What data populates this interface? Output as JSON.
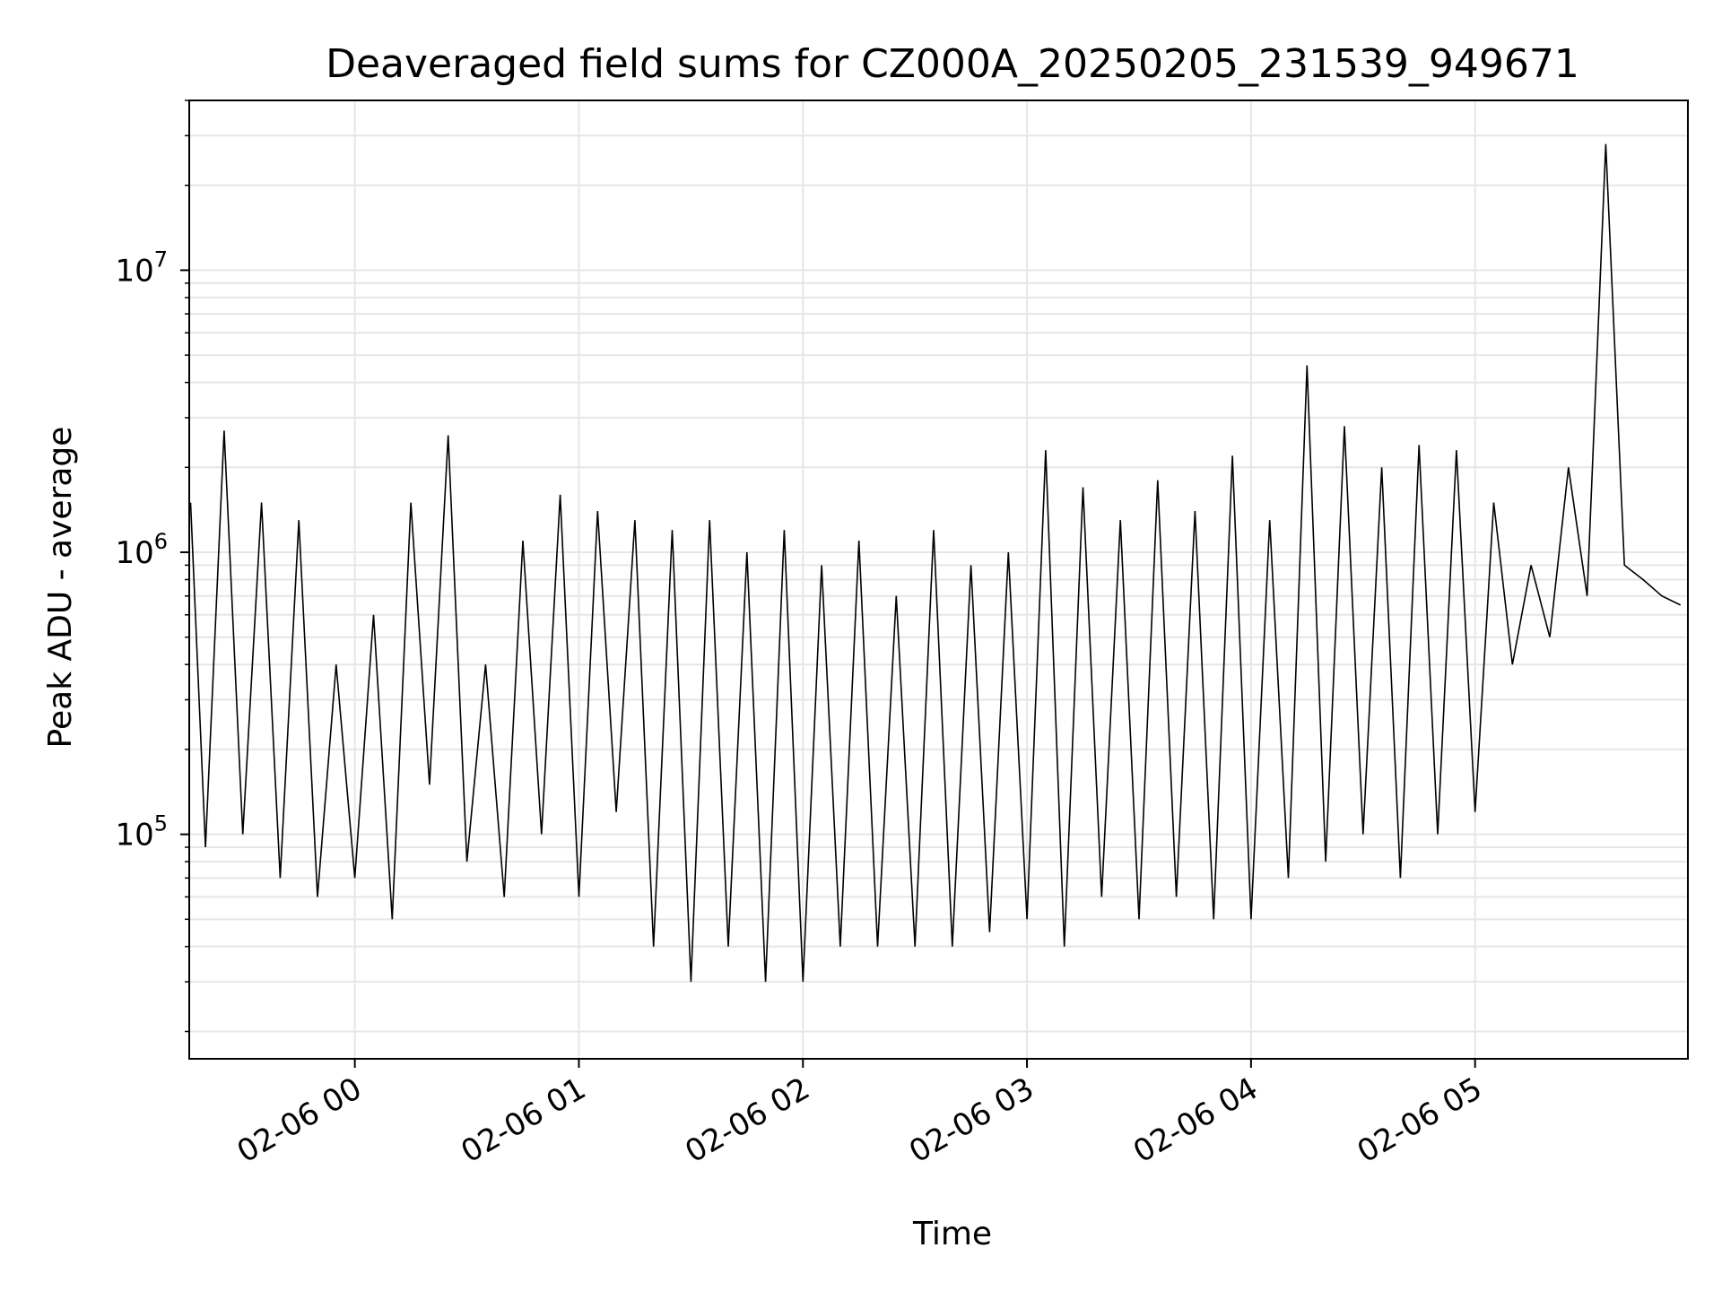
{
  "chart_data": {
    "type": "line",
    "title": "Deaveraged field sums for CZ000A_20250205_231539_949671",
    "xlabel": "Time",
    "ylabel": "Peak ADU - average",
    "yscale": "log",
    "ylim": [
      16000,
      40000000
    ],
    "xlim": [
      "2025-02-05 23:15:39",
      "2025-02-06 05:57:00"
    ],
    "grid": true,
    "legend": "none",
    "line_color": "#000000",
    "grid_color": "#e6e6e6",
    "x_ticks": [
      {
        "t": "2025-02-06 00:00",
        "label": "02-06 00"
      },
      {
        "t": "2025-02-06 01:00",
        "label": "02-06 01"
      },
      {
        "t": "2025-02-06 02:00",
        "label": "02-06 02"
      },
      {
        "t": "2025-02-06 03:00",
        "label": "02-06 03"
      },
      {
        "t": "2025-02-06 04:00",
        "label": "02-06 04"
      },
      {
        "t": "2025-02-06 05:00",
        "label": "02-06 05"
      }
    ],
    "y_ticks": [
      {
        "value": 100000,
        "base": "10",
        "exp": "5"
      },
      {
        "value": 1000000,
        "base": "10",
        "exp": "6"
      },
      {
        "value": 10000000,
        "base": "10",
        "exp": "7"
      }
    ],
    "series": [
      {
        "x": [
          "2025-02-05 23:16",
          "2025-02-05 23:20",
          "2025-02-05 23:25",
          "2025-02-05 23:30",
          "2025-02-05 23:35",
          "2025-02-05 23:40",
          "2025-02-05 23:45",
          "2025-02-05 23:50",
          "2025-02-05 23:55",
          "2025-02-06 00:00",
          "2025-02-06 00:05",
          "2025-02-06 00:10",
          "2025-02-06 00:15",
          "2025-02-06 00:20",
          "2025-02-06 00:25",
          "2025-02-06 00:30",
          "2025-02-06 00:35",
          "2025-02-06 00:40",
          "2025-02-06 00:45",
          "2025-02-06 00:50",
          "2025-02-06 00:55",
          "2025-02-06 01:00",
          "2025-02-06 01:05",
          "2025-02-06 01:10",
          "2025-02-06 01:15",
          "2025-02-06 01:20",
          "2025-02-06 01:25",
          "2025-02-06 01:30",
          "2025-02-06 01:35",
          "2025-02-06 01:40",
          "2025-02-06 01:45",
          "2025-02-06 01:50",
          "2025-02-06 01:55",
          "2025-02-06 02:00",
          "2025-02-06 02:05",
          "2025-02-06 02:10",
          "2025-02-06 02:15",
          "2025-02-06 02:20",
          "2025-02-06 02:25",
          "2025-02-06 02:30",
          "2025-02-06 02:35",
          "2025-02-06 02:40",
          "2025-02-06 02:45",
          "2025-02-06 02:50",
          "2025-02-06 02:55",
          "2025-02-06 03:00",
          "2025-02-06 03:05",
          "2025-02-06 03:10",
          "2025-02-06 03:15",
          "2025-02-06 03:20",
          "2025-02-06 03:25",
          "2025-02-06 03:30",
          "2025-02-06 03:35",
          "2025-02-06 03:40",
          "2025-02-06 03:45",
          "2025-02-06 03:50",
          "2025-02-06 03:55",
          "2025-02-06 04:00",
          "2025-02-06 04:05",
          "2025-02-06 04:10",
          "2025-02-06 04:15",
          "2025-02-06 04:20",
          "2025-02-06 04:25",
          "2025-02-06 04:30",
          "2025-02-06 04:35",
          "2025-02-06 04:40",
          "2025-02-06 04:45",
          "2025-02-06 04:50",
          "2025-02-06 04:55",
          "2025-02-06 05:00",
          "2025-02-06 05:05",
          "2025-02-06 05:10",
          "2025-02-06 05:15",
          "2025-02-06 05:20",
          "2025-02-06 05:25",
          "2025-02-06 05:30",
          "2025-02-06 05:35",
          "2025-02-06 05:40",
          "2025-02-06 05:45",
          "2025-02-06 05:50",
          "2025-02-06 05:55"
        ],
        "values": [
          1500000,
          90000,
          2700000,
          100000,
          1500000,
          70000,
          1300000,
          60000,
          400000,
          70000,
          600000,
          50000,
          1500000,
          150000,
          2600000,
          80000,
          400000,
          60000,
          1100000,
          100000,
          1600000,
          60000,
          1400000,
          120000,
          1300000,
          40000,
          1200000,
          30000,
          1300000,
          40000,
          1000000,
          30000,
          1200000,
          30000,
          900000,
          40000,
          1100000,
          40000,
          700000,
          40000,
          1200000,
          40000,
          900000,
          45000,
          1000000,
          50000,
          2300000,
          40000,
          1700000,
          60000,
          1300000,
          50000,
          1800000,
          60000,
          1400000,
          50000,
          2200000,
          50000,
          1300000,
          70000,
          4600000,
          80000,
          2800000,
          100000,
          2000000,
          70000,
          2400000,
          100000,
          2300000,
          120000,
          1500000,
          400000,
          900000,
          500000,
          2000000,
          700000,
          28000000,
          900000,
          800000,
          700000,
          650000
        ]
      }
    ]
  }
}
